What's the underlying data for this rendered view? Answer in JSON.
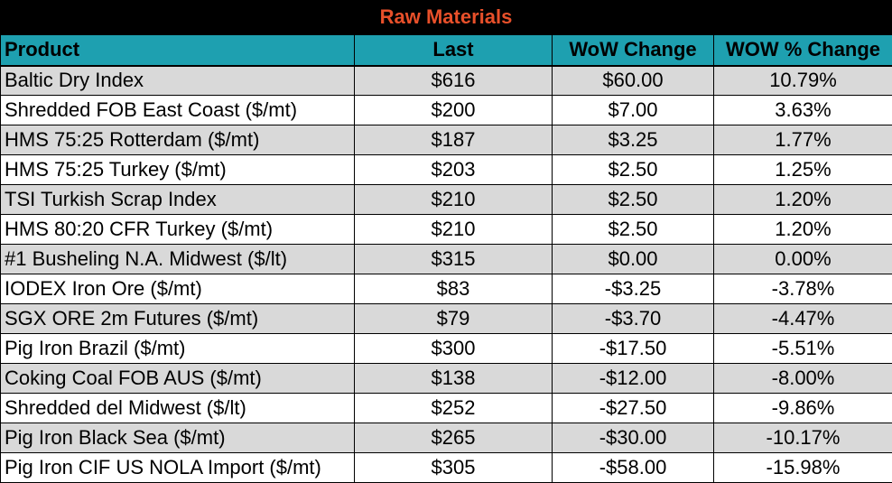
{
  "title": "Raw Materials",
  "columns": [
    "Product",
    "Last",
    "WoW Change",
    "WOW % Change"
  ],
  "rows": [
    {
      "product": "Baltic Dry Index",
      "last": "$616",
      "wow_change": "$60.00",
      "wow_pct": "10.79%"
    },
    {
      "product": "Shredded FOB East Coast ($/mt)",
      "last": "$200",
      "wow_change": "$7.00",
      "wow_pct": "3.63%"
    },
    {
      "product": "HMS 75:25 Rotterdam ($/mt)",
      "last": "$187",
      "wow_change": "$3.25",
      "wow_pct": "1.77%"
    },
    {
      "product": "HMS 75:25 Turkey ($/mt)",
      "last": "$203",
      "wow_change": "$2.50",
      "wow_pct": "1.25%"
    },
    {
      "product": "TSI Turkish Scrap Index",
      "last": "$210",
      "wow_change": "$2.50",
      "wow_pct": "1.20%"
    },
    {
      "product": "HMS 80:20 CFR Turkey ($/mt)",
      "last": "$210",
      "wow_change": "$2.50",
      "wow_pct": "1.20%"
    },
    {
      "product": "#1 Busheling N.A. Midwest ($/lt)",
      "last": "$315",
      "wow_change": "$0.00",
      "wow_pct": "0.00%"
    },
    {
      "product": "IODEX  Iron Ore ($/mt)",
      "last": "$83",
      "wow_change": "-$3.25",
      "wow_pct": "-3.78%"
    },
    {
      "product": "SGX ORE 2m Futures ($/mt)",
      "last": "$79",
      "wow_change": "-$3.70",
      "wow_pct": "-4.47%"
    },
    {
      "product": "Pig Iron Brazil ($/mt)",
      "last": "$300",
      "wow_change": "-$17.50",
      "wow_pct": "-5.51%"
    },
    {
      "product": "Coking Coal FOB AUS ($/mt)",
      "last": "$138",
      "wow_change": "-$12.00",
      "wow_pct": "-8.00%"
    },
    {
      "product": "Shredded del  Midwest ($/lt)",
      "last": "$252",
      "wow_change": "-$27.50",
      "wow_pct": "-9.86%"
    },
    {
      "product": "Pig Iron Black Sea ($/mt)",
      "last": "$265",
      "wow_change": "-$30.00",
      "wow_pct": "-10.17%"
    },
    {
      "product": "Pig Iron CIF US NOLA Import ($/mt)",
      "last": "$305",
      "wow_change": "-$58.00",
      "wow_pct": "-15.98%"
    }
  ],
  "colors": {
    "title_bg": "#000000",
    "title_text": "#e8502a",
    "header_bg": "#1ea0b0",
    "band_gray": "#d9d9d9",
    "band_white": "#ffffff"
  }
}
